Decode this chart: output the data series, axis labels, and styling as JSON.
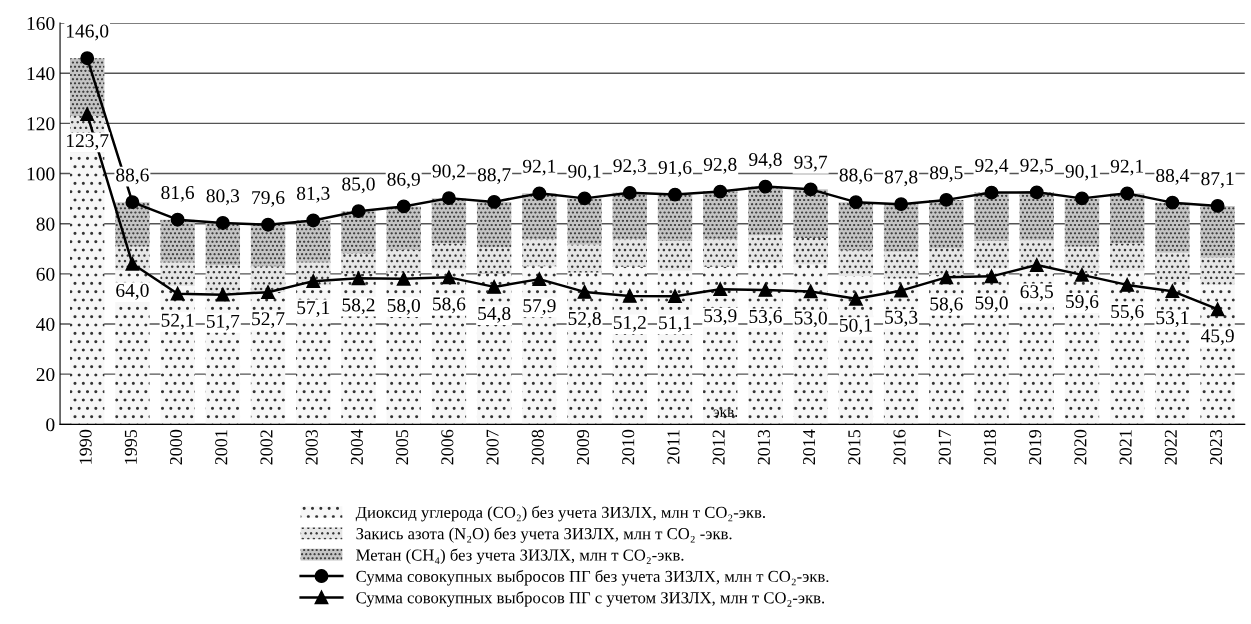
{
  "chart_data": {
    "type": "bar",
    "stacked": true,
    "categories": [
      "1990",
      "1995",
      "2000",
      "2001",
      "2002",
      "2003",
      "2004",
      "2005",
      "2006",
      "2007",
      "2008",
      "2009",
      "2010",
      "2011",
      "2012",
      "2013",
      "2014",
      "2015",
      "2016",
      "2017",
      "2018",
      "2019",
      "2020",
      "2021",
      "2022",
      "2023"
    ],
    "ylim": [
      0,
      160
    ],
    "yticks": [
      0,
      20,
      40,
      60,
      80,
      100,
      120,
      140,
      160
    ],
    "grid": "y",
    "legend": "bottom",
    "series": [
      {
        "name": "Диоксид углерода (CO₂) без учета ЗИЗЛХ, млн т CO₂-экв.",
        "type": "bar",
        "color": "#f7f7f7",
        "values": [
          108.4,
          61.4,
          55.2,
          52.6,
          52.8,
          55.5,
          59.9,
          60.4,
          61.7,
          60.1,
          63.0,
          60.5,
          62.8,
          61.2,
          62.8,
          64.1,
          63.7,
          59.1,
          58.1,
          59.5,
          62.1,
          62.4,
          60.4,
          61.2,
          56.8,
          55.7
        ]
      },
      {
        "name": "Закись азота (N₂O) без учета ЗИЗЛХ, млн т CO₂ -экв.",
        "type": "bar",
        "color": "#e6e6e6",
        "values": [
          14.5,
          9.4,
          9.3,
          10.8,
          10.2,
          9.0,
          8.2,
          9.3,
          10.4,
          10.4,
          10.7,
          11.2,
          10.9,
          11.9,
          10.9,
          11.3,
          10.6,
          10.3,
          10.7,
          10.6,
          11.0,
          11.0,
          10.4,
          10.9,
          11.6,
          10.8
        ]
      },
      {
        "name": "Метан (CH₄) без учета ЗИЗЛХ, млн т CO₂-экв.",
        "type": "bar",
        "color": "#c4c4c4",
        "values": [
          23.1,
          17.8,
          17.1,
          16.9,
          16.6,
          16.8,
          16.9,
          17.2,
          18.1,
          18.2,
          18.4,
          18.4,
          18.6,
          18.5,
          19.1,
          19.4,
          19.4,
          19.2,
          19.0,
          19.4,
          19.3,
          19.1,
          19.3,
          20.0,
          20.0,
          20.6
        ]
      },
      {
        "name": "Сумма совокупных выбросов ПГ без учета ЗИЗЛХ, млн т CO₂-экв.",
        "type": "line",
        "color": "#000000",
        "marker": "circle",
        "line_style": "solid",
        "values": [
          146.0,
          88.6,
          81.6,
          80.3,
          79.6,
          81.3,
          85.0,
          86.9,
          90.2,
          88.7,
          92.1,
          90.1,
          92.3,
          91.6,
          92.8,
          94.8,
          93.7,
          88.6,
          87.8,
          89.5,
          92.4,
          92.5,
          90.1,
          92.1,
          88.4,
          87.1
        ],
        "value_labels": [
          "146,0",
          "88,6",
          "81,6",
          "80,3",
          "79,6",
          "81,3",
          "85,0",
          "86,9",
          "90,2",
          "88,7",
          "92,1",
          "90,1",
          "92,3",
          "91,6",
          "92,8",
          "94,8",
          "93,7",
          "88,6",
          "87,8",
          "89,5",
          "92,4",
          "92,5",
          "90,1",
          "92,1",
          "88,4",
          "87,1"
        ]
      },
      {
        "name": "Сумма совокупных выбросов ПГ с учетом ЗИЗЛХ, млн т CO₂-экв.",
        "type": "line",
        "color": "#000000",
        "marker": "triangle",
        "line_style": "solid",
        "values": [
          123.7,
          64.0,
          52.1,
          51.7,
          52.7,
          57.1,
          58.2,
          58.0,
          58.6,
          54.8,
          57.9,
          52.8,
          51.2,
          51.1,
          53.9,
          53.6,
          53.0,
          50.1,
          53.3,
          58.6,
          59.0,
          63.5,
          59.6,
          55.6,
          53.1,
          45.9
        ],
        "value_labels": [
          "123,7",
          "64,0",
          "52,1",
          "51,7",
          "52,7",
          "57,1",
          "58,2",
          "58,0",
          "58,6",
          "54,8",
          "57,9",
          "52,8",
          "51,2",
          "51,1",
          "53,9",
          "53,6",
          "53,0",
          "50,1",
          "53,3",
          "58,6",
          "59,0",
          "63,5",
          "59,6",
          "55,6",
          "53,1",
          "45,9"
        ]
      }
    ],
    "annotations": [
      "экв."
    ]
  }
}
